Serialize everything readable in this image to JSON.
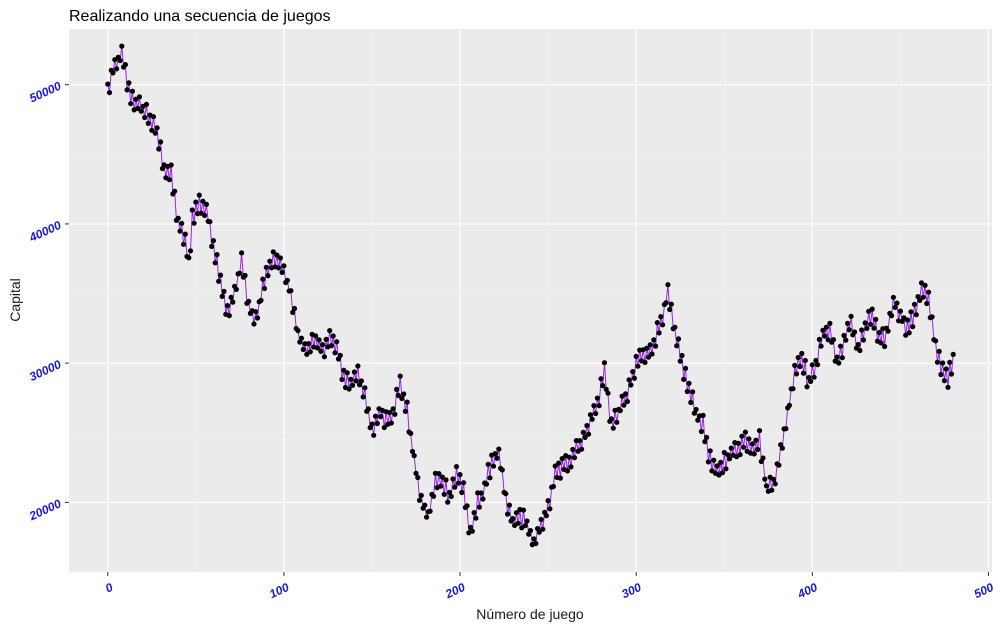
{
  "chart_data": {
    "type": "line",
    "title": "Realizando una secuencia de juegos",
    "xlabel": "Número de juego",
    "ylabel": "Capital",
    "xlim": [
      -22,
      502
    ],
    "ylim": [
      15000,
      54000
    ],
    "x_ticks": [
      0,
      100,
      200,
      300,
      400,
      500
    ],
    "x_tick_labels": [
      "0",
      "100",
      "200",
      "300",
      "400",
      "500"
    ],
    "y_ticks": [
      20000,
      30000,
      40000,
      50000
    ],
    "y_tick_labels": [
      "20000",
      "30000",
      "40000",
      "50000"
    ],
    "grid": true,
    "line_color": "#a020f0",
    "point_color": "#000000",
    "panel_color": "#ebebeb",
    "tick_label_color": "#1a1ad6",
    "n_points": 481,
    "anchors": [
      [
        0,
        49500
      ],
      [
        3,
        51000
      ],
      [
        8,
        52200
      ],
      [
        12,
        49500
      ],
      [
        15,
        48800
      ],
      [
        22,
        48000
      ],
      [
        28,
        46500
      ],
      [
        32,
        44000
      ],
      [
        36,
        43500
      ],
      [
        40,
        40000
      ],
      [
        44,
        38800
      ],
      [
        46,
        37000
      ],
      [
        48,
        40500
      ],
      [
        52,
        41500
      ],
      [
        56,
        41000
      ],
      [
        60,
        38500
      ],
      [
        64,
        36000
      ],
      [
        68,
        33500
      ],
      [
        72,
        35000
      ],
      [
        76,
        37500
      ],
      [
        80,
        34000
      ],
      [
        84,
        33000
      ],
      [
        88,
        35500
      ],
      [
        92,
        37000
      ],
      [
        96,
        37500
      ],
      [
        100,
        36500
      ],
      [
        104,
        35000
      ],
      [
        108,
        32000
      ],
      [
        112,
        31000
      ],
      [
        116,
        31500
      ],
      [
        122,
        31000
      ],
      [
        126,
        31800
      ],
      [
        130,
        31000
      ],
      [
        134,
        29000
      ],
      [
        138,
        28500
      ],
      [
        142,
        29500
      ],
      [
        146,
        27500
      ],
      [
        150,
        25000
      ],
      [
        154,
        26500
      ],
      [
        158,
        26000
      ],
      [
        162,
        26500
      ],
      [
        166,
        28500
      ],
      [
        170,
        26500
      ],
      [
        174,
        23000
      ],
      [
        178,
        20000
      ],
      [
        182,
        19000
      ],
      [
        186,
        21500
      ],
      [
        190,
        21500
      ],
      [
        194,
        20500
      ],
      [
        198,
        22000
      ],
      [
        202,
        21000
      ],
      [
        206,
        17500
      ],
      [
        210,
        20000
      ],
      [
        214,
        21000
      ],
      [
        218,
        23000
      ],
      [
        222,
        23500
      ],
      [
        226,
        20000
      ],
      [
        230,
        18500
      ],
      [
        234,
        19000
      ],
      [
        238,
        18500
      ],
      [
        242,
        16800
      ],
      [
        246,
        18500
      ],
      [
        250,
        19500
      ],
      [
        254,
        22000
      ],
      [
        258,
        22500
      ],
      [
        262,
        23000
      ],
      [
        266,
        24000
      ],
      [
        270,
        24500
      ],
      [
        274,
        26000
      ],
      [
        278,
        27000
      ],
      [
        282,
        29500
      ],
      [
        286,
        25500
      ],
      [
        290,
        26500
      ],
      [
        294,
        27500
      ],
      [
        298,
        29000
      ],
      [
        302,
        30500
      ],
      [
        306,
        30500
      ],
      [
        310,
        31500
      ],
      [
        314,
        33000
      ],
      [
        318,
        35000
      ],
      [
        322,
        32000
      ],
      [
        326,
        30000
      ],
      [
        330,
        28000
      ],
      [
        334,
        26500
      ],
      [
        338,
        25500
      ],
      [
        342,
        23000
      ],
      [
        346,
        22000
      ],
      [
        350,
        23000
      ],
      [
        354,
        23500
      ],
      [
        358,
        24000
      ],
      [
        362,
        24500
      ],
      [
        366,
        24000
      ],
      [
        370,
        24500
      ],
      [
        374,
        21000
      ],
      [
        378,
        21500
      ],
      [
        382,
        23500
      ],
      [
        386,
        26500
      ],
      [
        390,
        29500
      ],
      [
        394,
        30500
      ],
      [
        398,
        28500
      ],
      [
        402,
        30000
      ],
      [
        406,
        32000
      ],
      [
        410,
        32500
      ],
      [
        414,
        30000
      ],
      [
        418,
        31500
      ],
      [
        422,
        33000
      ],
      [
        426,
        31000
      ],
      [
        430,
        32500
      ],
      [
        434,
        33500
      ],
      [
        438,
        31500
      ],
      [
        442,
        32000
      ],
      [
        446,
        34500
      ],
      [
        450,
        33500
      ],
      [
        454,
        32500
      ],
      [
        458,
        33500
      ],
      [
        462,
        35500
      ],
      [
        466,
        34500
      ],
      [
        470,
        31000
      ],
      [
        474,
        29500
      ],
      [
        477,
        29000
      ],
      [
        480,
        30000
      ]
    ]
  }
}
